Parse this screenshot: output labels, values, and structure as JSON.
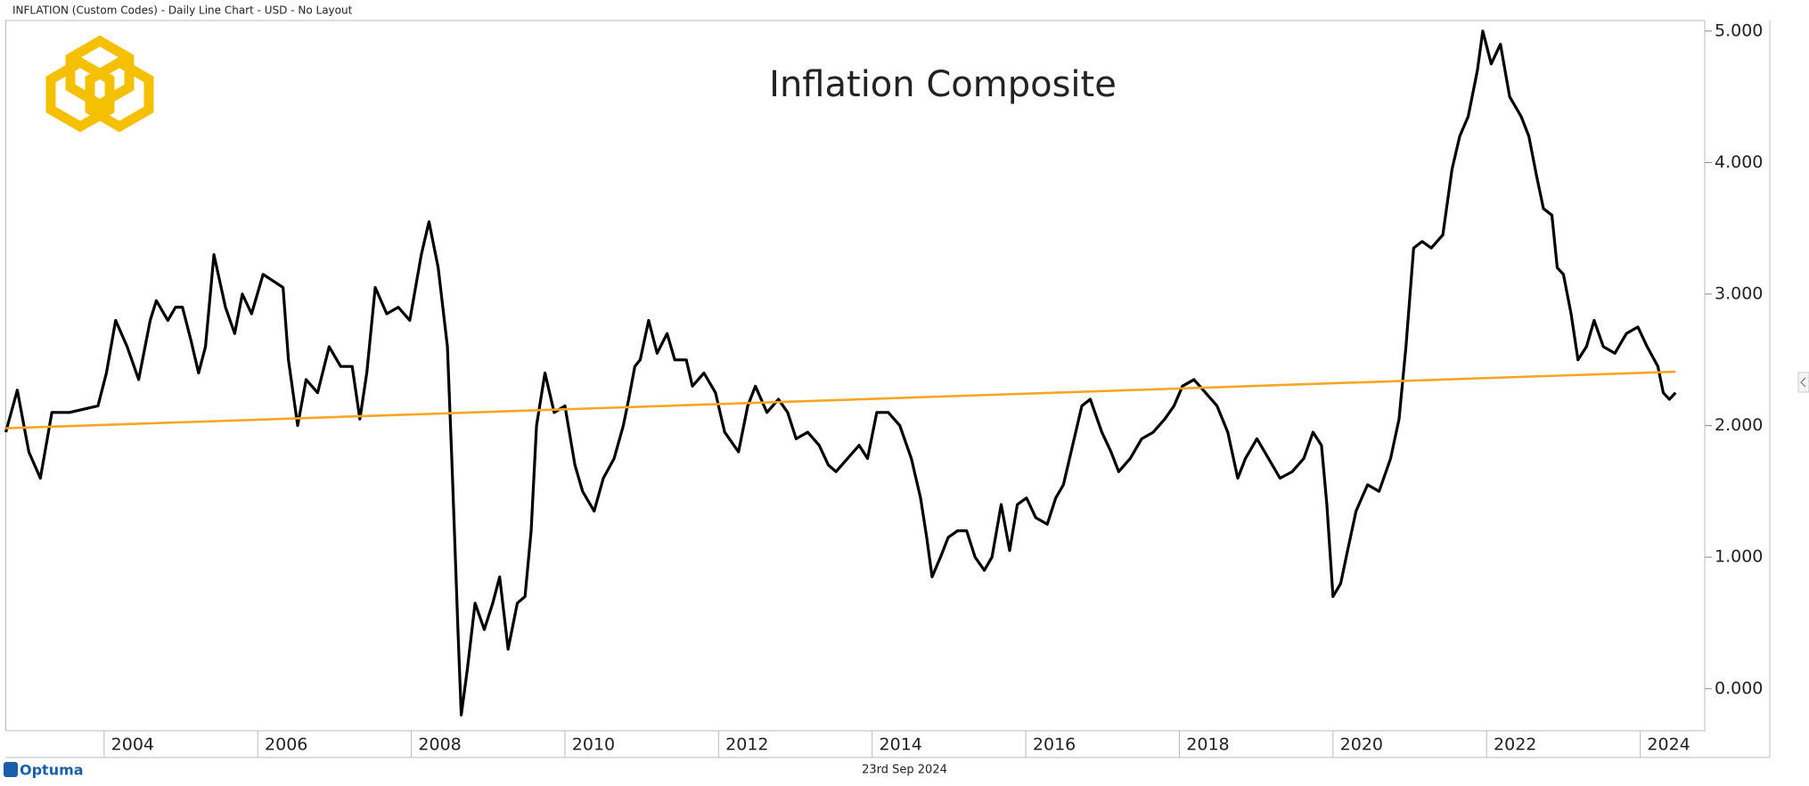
{
  "header": "INFLATION (Custom Codes) - Daily Line Chart - USD - No Layout",
  "footer": {
    "brand": "Optuma",
    "date": "23rd Sep 2024"
  },
  "chart_data": {
    "type": "line",
    "title": "Inflation Composite",
    "xlim": [
      2002.72,
      2024.84
    ],
    "xticks": [
      2004,
      2006,
      2008,
      2010,
      2012,
      2014,
      2016,
      2018,
      2020,
      2022,
      2024
    ],
    "ylim": [
      -0.32,
      5.08
    ],
    "yticks": [
      {
        "value": 0,
        "label": "0.000"
      },
      {
        "value": 1,
        "label": "1.000"
      },
      {
        "value": 2,
        "label": "2.000"
      },
      {
        "value": 3,
        "label": "3.000"
      },
      {
        "value": 4,
        "label": "4.000"
      },
      {
        "value": 5,
        "label": "5.000"
      }
    ],
    "grid": false,
    "series": [
      {
        "color": "#000000",
        "x": [
          2002.72,
          2002.87,
          2003.02,
          2003.17,
          2003.32,
          2003.55,
          2003.92,
          2004.03,
          2004.15,
          2004.3,
          2004.45,
          2004.6,
          2004.68,
          2004.83,
          2004.93,
          2005.02,
          2005.13,
          2005.23,
          2005.32,
          2005.43,
          2005.58,
          2005.7,
          2005.8,
          2005.92,
          2006.07,
          2006.33,
          2006.4,
          2006.52,
          2006.63,
          2006.78,
          2006.93,
          2007.08,
          2007.23,
          2007.33,
          2007.42,
          2007.53,
          2007.68,
          2007.83,
          2007.98,
          2008.13,
          2008.23,
          2008.35,
          2008.47,
          2008.53,
          2008.61,
          2008.65,
          2008.73,
          2008.83,
          2008.95,
          2009.06,
          2009.15,
          2009.26,
          2009.38,
          2009.48,
          2009.56,
          2009.63,
          2009.74,
          2009.86,
          2010.0,
          2010.13,
          2010.23,
          2010.38,
          2010.5,
          2010.64,
          2010.76,
          2010.83,
          2010.91,
          2010.98,
          2011.09,
          2011.2,
          2011.33,
          2011.43,
          2011.58,
          2011.66,
          2011.81,
          2011.96,
          2012.08,
          2012.26,
          2012.38,
          2012.48,
          2012.63,
          2012.78,
          2012.9,
          2013.01,
          2013.16,
          2013.31,
          2013.43,
          2013.53,
          2013.68,
          2013.83,
          2013.94,
          2014.06,
          2014.21,
          2014.36,
          2014.51,
          2014.63,
          2014.71,
          2014.78,
          2014.89,
          2014.99,
          2015.11,
          2015.23,
          2015.34,
          2015.46,
          2015.56,
          2015.68,
          2015.79,
          2015.89,
          2016.01,
          2016.13,
          2016.28,
          2016.39,
          2016.49,
          2016.61,
          2016.73,
          2016.84,
          2016.99,
          2017.11,
          2017.21,
          2017.36,
          2017.51,
          2017.66,
          2017.81,
          2017.93,
          2018.04,
          2018.19,
          2018.34,
          2018.49,
          2018.63,
          2018.76,
          2018.86,
          2019.01,
          2019.16,
          2019.31,
          2019.47,
          2019.62,
          2019.74,
          2019.85,
          2019.92,
          2020.0,
          2020.1,
          2020.19,
          2020.3,
          2020.45,
          2020.6,
          2020.75,
          2020.86,
          2020.95,
          2021.05,
          2021.16,
          2021.28,
          2021.43,
          2021.55,
          2021.65,
          2021.76,
          2021.88,
          2021.95,
          2022.06,
          2022.18,
          2022.3,
          2022.45,
          2022.55,
          2022.65,
          2022.74,
          2022.85,
          2022.92,
          2023.0,
          2023.1,
          2023.19,
          2023.3,
          2023.4,
          2023.52,
          2023.67,
          2023.82,
          2023.97,
          2024.09,
          2024.23,
          2024.3,
          2024.38,
          2024.46
        ],
        "values": [
          1.95,
          2.27,
          1.8,
          1.6,
          2.1,
          2.1,
          2.15,
          2.4,
          2.8,
          2.6,
          2.35,
          2.8,
          2.95,
          2.8,
          2.9,
          2.9,
          2.65,
          2.4,
          2.6,
          3.3,
          2.9,
          2.7,
          3.0,
          2.85,
          3.15,
          3.05,
          2.5,
          2.0,
          2.35,
          2.25,
          2.6,
          2.45,
          2.45,
          2.05,
          2.4,
          3.05,
          2.85,
          2.9,
          2.8,
          3.3,
          3.55,
          3.2,
          2.6,
          1.7,
          0.4,
          -0.2,
          0.15,
          0.65,
          0.45,
          0.65,
          0.85,
          0.3,
          0.65,
          0.7,
          1.2,
          2.0,
          2.4,
          2.1,
          2.15,
          1.7,
          1.5,
          1.35,
          1.6,
          1.75,
          2.0,
          2.2,
          2.45,
          2.5,
          2.8,
          2.55,
          2.7,
          2.5,
          2.5,
          2.3,
          2.4,
          2.25,
          1.95,
          1.8,
          2.15,
          2.3,
          2.1,
          2.2,
          2.1,
          1.9,
          1.95,
          1.85,
          1.7,
          1.65,
          1.75,
          1.85,
          1.75,
          2.1,
          2.1,
          2.0,
          1.75,
          1.45,
          1.15,
          0.85,
          1.0,
          1.15,
          1.2,
          1.2,
          1.0,
          0.9,
          1.0,
          1.4,
          1.05,
          1.4,
          1.45,
          1.3,
          1.25,
          1.45,
          1.55,
          1.85,
          2.15,
          2.2,
          1.95,
          1.8,
          1.65,
          1.75,
          1.9,
          1.95,
          2.05,
          2.15,
          2.3,
          2.35,
          2.25,
          2.15,
          1.95,
          1.6,
          1.75,
          1.9,
          1.75,
          1.6,
          1.65,
          1.75,
          1.95,
          1.85,
          1.4,
          0.7,
          0.8,
          1.05,
          1.35,
          1.55,
          1.5,
          1.75,
          2.05,
          2.6,
          3.35,
          3.4,
          3.35,
          3.45,
          3.95,
          4.2,
          4.35,
          4.7,
          5.0,
          4.75,
          4.9,
          4.5,
          4.35,
          4.2,
          3.9,
          3.65,
          3.6,
          3.2,
          3.15,
          2.85,
          2.5,
          2.6,
          2.8,
          2.6,
          2.55,
          2.7,
          2.75,
          2.6,
          2.45,
          2.25,
          2.2,
          2.25
        ]
      },
      {
        "color": "#f5a623",
        "x": [
          2002.72,
          2024.46
        ],
        "values": [
          1.98,
          2.41
        ]
      }
    ]
  }
}
